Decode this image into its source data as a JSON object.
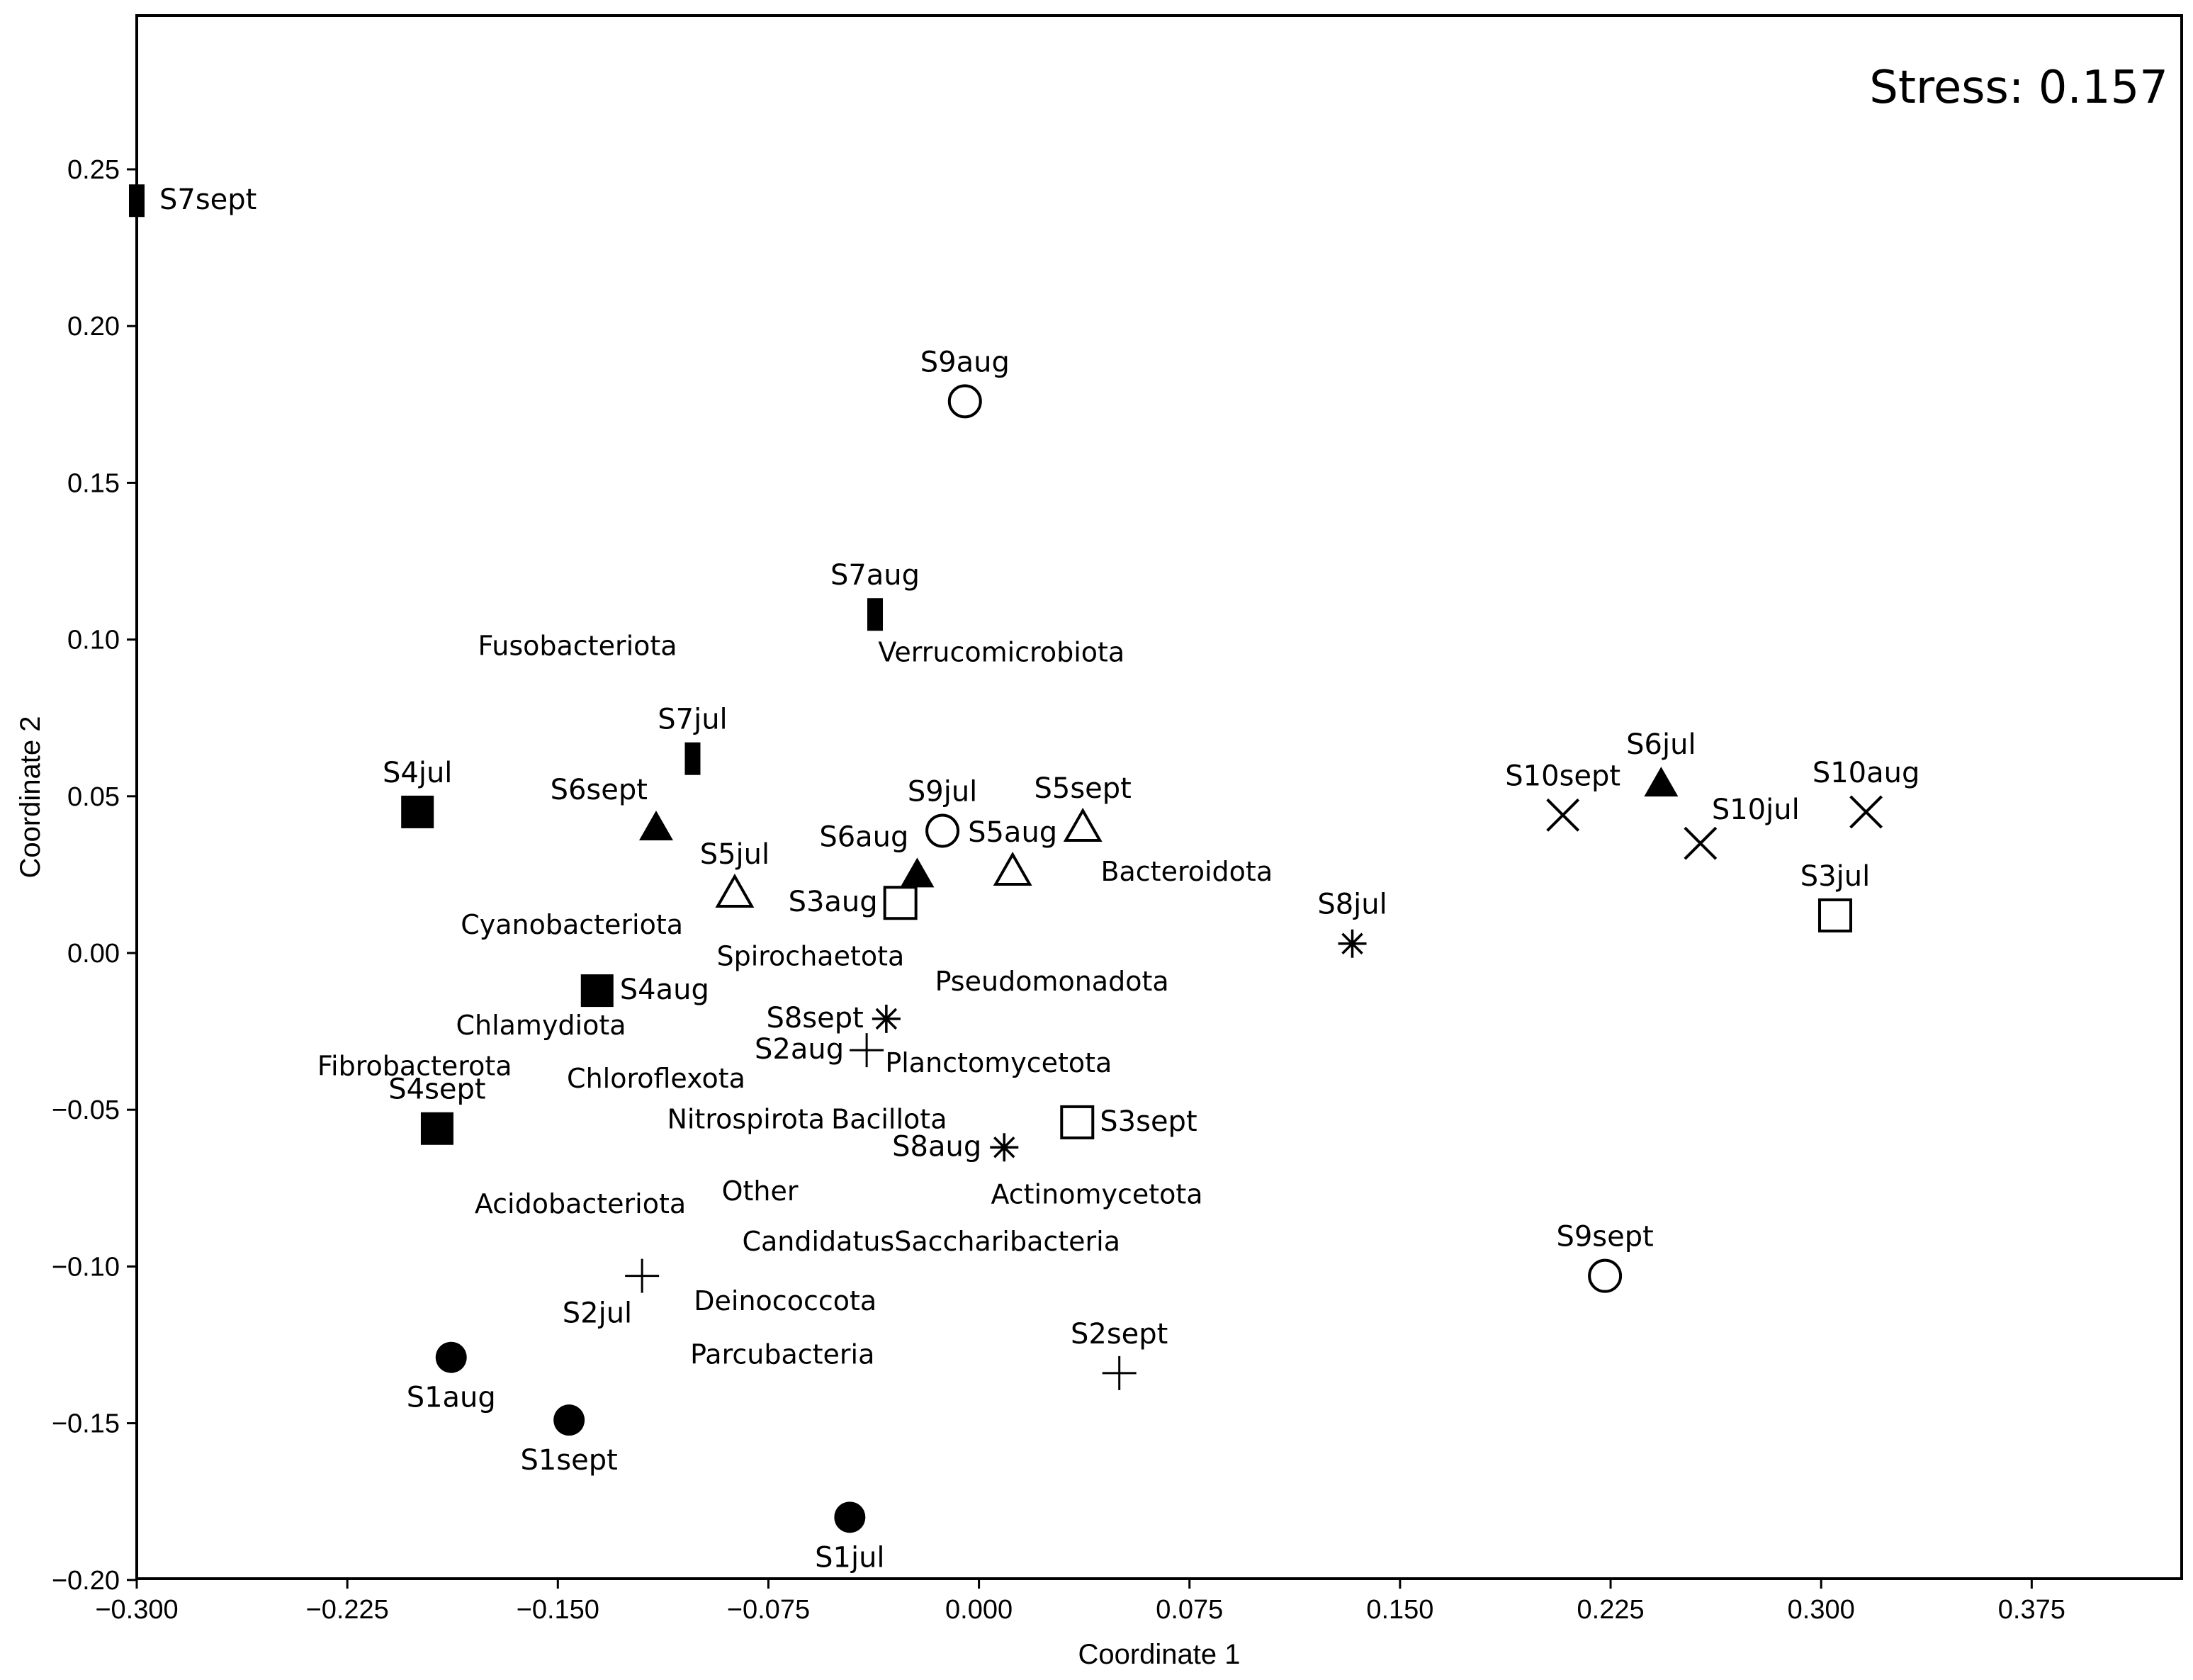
{
  "chart_data": {
    "type": "scatter",
    "title": "",
    "stress_label": "Stress: 0.157",
    "xlabel": "Coordinate 1",
    "ylabel": "Coordinate 2",
    "xlim": [
      -0.3,
      0.405
    ],
    "ylim": [
      -0.2,
      0.3
    ],
    "xticks": [
      -0.3,
      -0.225,
      -0.15,
      -0.075,
      0.0,
      0.075,
      0.15,
      0.225,
      0.3,
      0.375
    ],
    "xtick_labels": [
      "−0.300",
      "−0.225",
      "−0.150",
      "−0.075",
      "0.000",
      "0.075",
      "0.150",
      "0.225",
      "0.300",
      "0.375"
    ],
    "yticks": [
      -0.2,
      -0.15,
      -0.1,
      -0.05,
      0.0,
      0.05,
      0.1,
      0.15,
      0.2,
      0.25
    ],
    "ytick_labels": [
      "−0.20",
      "−0.15",
      "−0.10",
      "−0.05",
      "0.00",
      "0.05",
      "0.10",
      "0.15",
      "0.20",
      "0.25"
    ],
    "samples": [
      {
        "name": "S1aug",
        "x": -0.188,
        "y": -0.129,
        "marker": "filled-circle",
        "label_pos": "below"
      },
      {
        "name": "S1sept",
        "x": -0.146,
        "y": -0.149,
        "marker": "filled-circle",
        "label_pos": "below"
      },
      {
        "name": "S1jul",
        "x": -0.046,
        "y": -0.18,
        "marker": "filled-circle",
        "label_pos": "below"
      },
      {
        "name": "S2jul",
        "x": -0.12,
        "y": -0.103,
        "marker": "plus",
        "label_pos": "below-left"
      },
      {
        "name": "S2aug",
        "x": -0.04,
        "y": -0.031,
        "marker": "plus",
        "label_pos": "left"
      },
      {
        "name": "S2sept",
        "x": 0.05,
        "y": -0.134,
        "marker": "plus",
        "label_pos": "above"
      },
      {
        "name": "S3jul",
        "x": 0.305,
        "y": 0.012,
        "marker": "open-square",
        "label_pos": "above"
      },
      {
        "name": "S3aug",
        "x": -0.028,
        "y": 0.016,
        "marker": "open-square",
        "label_pos": "left"
      },
      {
        "name": "S3sept",
        "x": 0.035,
        "y": -0.054,
        "marker": "open-square",
        "label_pos": "right"
      },
      {
        "name": "S4jul",
        "x": -0.2,
        "y": 0.045,
        "marker": "filled-square",
        "label_pos": "above"
      },
      {
        "name": "S4aug",
        "x": -0.136,
        "y": -0.012,
        "marker": "filled-square",
        "label_pos": "right"
      },
      {
        "name": "S4sept",
        "x": -0.193,
        "y": -0.056,
        "marker": "filled-square",
        "label_pos": "above"
      },
      {
        "name": "S5jul",
        "x": -0.087,
        "y": 0.019,
        "marker": "open-triangle",
        "label_pos": "above"
      },
      {
        "name": "S5aug",
        "x": 0.012,
        "y": 0.026,
        "marker": "open-triangle",
        "label_pos": "above"
      },
      {
        "name": "S5sept",
        "x": 0.037,
        "y": 0.04,
        "marker": "open-triangle",
        "label_pos": "above"
      },
      {
        "name": "S6sept",
        "x": -0.115,
        "y": 0.04,
        "marker": "filled-triangle",
        "label_pos": "above-left"
      },
      {
        "name": "S6aug",
        "x": -0.022,
        "y": 0.025,
        "marker": "filled-triangle",
        "label_pos": "above-left"
      },
      {
        "name": "S6jul",
        "x": 0.243,
        "y": 0.054,
        "marker": "filled-triangle",
        "label_pos": "above"
      },
      {
        "name": "S7sept",
        "x": -0.3,
        "y": 0.24,
        "marker": "filled-bar",
        "label_pos": "right"
      },
      {
        "name": "S7aug",
        "x": -0.037,
        "y": 0.108,
        "marker": "filled-bar",
        "label_pos": "above"
      },
      {
        "name": "S7jul",
        "x": -0.102,
        "y": 0.062,
        "marker": "filled-bar",
        "label_pos": "above"
      },
      {
        "name": "S8jul",
        "x": 0.133,
        "y": 0.003,
        "marker": "asterisk",
        "label_pos": "above"
      },
      {
        "name": "S8sept",
        "x": -0.033,
        "y": -0.021,
        "marker": "asterisk",
        "label_pos": "left"
      },
      {
        "name": "S8aug",
        "x": 0.009,
        "y": -0.062,
        "marker": "asterisk",
        "label_pos": "left"
      },
      {
        "name": "S9aug",
        "x": -0.005,
        "y": 0.176,
        "marker": "open-circle",
        "label_pos": "above"
      },
      {
        "name": "S9jul",
        "x": -0.013,
        "y": 0.039,
        "marker": "open-circle",
        "label_pos": "above"
      },
      {
        "name": "S9sept",
        "x": 0.223,
        "y": -0.103,
        "marker": "open-circle",
        "label_pos": "above"
      },
      {
        "name": "S10sept",
        "x": 0.208,
        "y": 0.044,
        "marker": "cross",
        "label_pos": "above"
      },
      {
        "name": "S10jul",
        "x": 0.257,
        "y": 0.035,
        "marker": "cross",
        "label_pos": "above-right"
      },
      {
        "name": "S10aug",
        "x": 0.316,
        "y": 0.045,
        "marker": "cross",
        "label_pos": "above"
      }
    ],
    "variables": [
      {
        "name": "Fusobacteriota",
        "x": -0.143,
        "y": 0.098
      },
      {
        "name": "Verrucomicrobiota",
        "x": 0.008,
        "y": 0.096
      },
      {
        "name": "Bacteroidota",
        "x": 0.074,
        "y": 0.026
      },
      {
        "name": "Cyanobacteriota",
        "x": -0.145,
        "y": 0.009
      },
      {
        "name": "Spirochaetota",
        "x": -0.06,
        "y": -0.001
      },
      {
        "name": "Pseudomonadota",
        "x": 0.026,
        "y": -0.009
      },
      {
        "name": "Chlamydiota",
        "x": -0.156,
        "y": -0.023
      },
      {
        "name": "Planctomycetota",
        "x": 0.007,
        "y": -0.035
      },
      {
        "name": "Fibrobacterota",
        "x": -0.201,
        "y": -0.036
      },
      {
        "name": "Chloroflexota",
        "x": -0.115,
        "y": -0.04
      },
      {
        "name": "Nitrospirota",
        "x": -0.083,
        "y": -0.053
      },
      {
        "name": "Bacillota",
        "x": -0.032,
        "y": -0.053
      },
      {
        "name": "Actinomycetota",
        "x": 0.042,
        "y": -0.077
      },
      {
        "name": "Acidobacteriota",
        "x": -0.142,
        "y": -0.08
      },
      {
        "name": "Other",
        "x": -0.078,
        "y": -0.076
      },
      {
        "name": "CandidatusSaccharibacteria",
        "x": -0.017,
        "y": -0.092
      },
      {
        "name": "Deinococcota",
        "x": -0.069,
        "y": -0.111
      },
      {
        "name": "Parcubacteria",
        "x": -0.07,
        "y": -0.128
      }
    ]
  }
}
